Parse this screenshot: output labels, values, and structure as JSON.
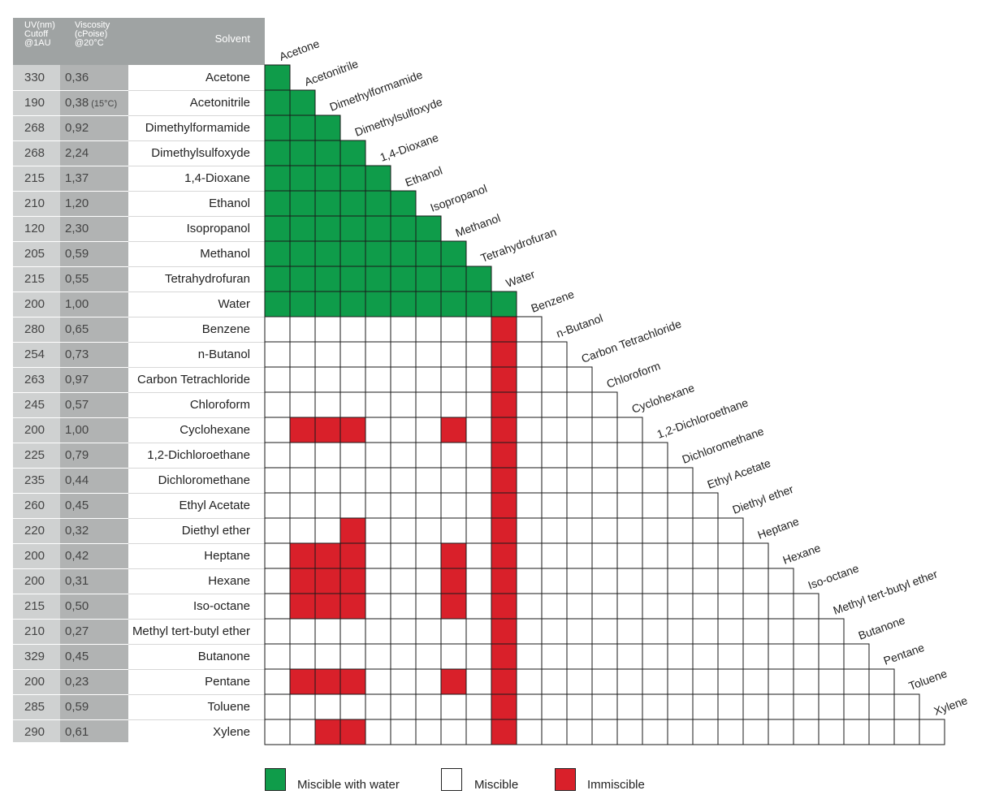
{
  "header": {
    "uv": "UV(nm)\nCutoff\n@1AU",
    "viscosity": "Viscosity\n(cPoise)\n@20°C",
    "solvent": "Solvent"
  },
  "colors": {
    "green": "#0f9c4a",
    "red": "#d9202a",
    "white": "#ffffff",
    "grid": "#1a1a1a"
  },
  "solvents": [
    {
      "name": "Acetone",
      "uv": "330",
      "viscosity": "0,36",
      "note": ""
    },
    {
      "name": "Acetonitrile",
      "uv": "190",
      "viscosity": "0,38",
      "note": "(15°C)"
    },
    {
      "name": "Dimethylformamide",
      "uv": "268",
      "viscosity": "0,92",
      "note": ""
    },
    {
      "name": "Dimethylsulfoxyde",
      "uv": "268",
      "viscosity": "2,24",
      "note": ""
    },
    {
      "name": "1,4-Dioxane",
      "uv": "215",
      "viscosity": "1,37",
      "note": ""
    },
    {
      "name": "Ethanol",
      "uv": "210",
      "viscosity": "1,20",
      "note": ""
    },
    {
      "name": "Isopropanol",
      "uv": "120",
      "viscosity": "2,30",
      "note": ""
    },
    {
      "name": "Methanol",
      "uv": "205",
      "viscosity": "0,59",
      "note": ""
    },
    {
      "name": "Tetrahydrofuran",
      "uv": "215",
      "viscosity": "0,55",
      "note": ""
    },
    {
      "name": "Water",
      "uv": "200",
      "viscosity": "1,00",
      "note": ""
    },
    {
      "name": "Benzene",
      "uv": "280",
      "viscosity": "0,65",
      "note": ""
    },
    {
      "name": "n-Butanol",
      "uv": "254",
      "viscosity": "0,73",
      "note": ""
    },
    {
      "name": "Carbon Tetrachloride",
      "uv": "263",
      "viscosity": "0,97",
      "note": ""
    },
    {
      "name": "Chloroform",
      "uv": "245",
      "viscosity": "0,57",
      "note": ""
    },
    {
      "name": "Cyclohexane",
      "uv": "200",
      "viscosity": "1,00",
      "note": ""
    },
    {
      "name": "1,2-Dichloroethane",
      "uv": "225",
      "viscosity": "0,79",
      "note": ""
    },
    {
      "name": "Dichloromethane",
      "uv": "235",
      "viscosity": "0,44",
      "note": ""
    },
    {
      "name": "Ethyl Acetate",
      "uv": "260",
      "viscosity": "0,45",
      "note": ""
    },
    {
      "name": "Diethyl ether",
      "uv": "220",
      "viscosity": "0,32",
      "note": ""
    },
    {
      "name": "Heptane",
      "uv": "200",
      "viscosity": "0,42",
      "note": ""
    },
    {
      "name": "Hexane",
      "uv": "200",
      "viscosity": "0,31",
      "note": ""
    },
    {
      "name": "Iso-octane",
      "uv": "215",
      "viscosity": "0,50",
      "note": ""
    },
    {
      "name": "Methyl tert-butyl ether",
      "uv": "210",
      "viscosity": "0,27",
      "note": ""
    },
    {
      "name": "Butanone",
      "uv": "329",
      "viscosity": "0,45",
      "note": ""
    },
    {
      "name": "Pentane",
      "uv": "200",
      "viscosity": "0,23",
      "note": ""
    },
    {
      "name": "Toluene",
      "uv": "285",
      "viscosity": "0,59",
      "note": ""
    },
    {
      "name": "Xylene",
      "uv": "290",
      "viscosity": "0,61",
      "note": ""
    }
  ],
  "matrix": {
    "water_miscible_count": 10,
    "immiscible_pairs": [
      [
        "Benzene",
        "Water"
      ],
      [
        "n-Butanol",
        "Water"
      ],
      [
        "Carbon Tetrachloride",
        "Water"
      ],
      [
        "Chloroform",
        "Water"
      ],
      [
        "Cyclohexane",
        "Water"
      ],
      [
        "1,2-Dichloroethane",
        "Water"
      ],
      [
        "Dichloromethane",
        "Water"
      ],
      [
        "Ethyl Acetate",
        "Water"
      ],
      [
        "Diethyl ether",
        "Water"
      ],
      [
        "Heptane",
        "Water"
      ],
      [
        "Hexane",
        "Water"
      ],
      [
        "Iso-octane",
        "Water"
      ],
      [
        "Methyl tert-butyl ether",
        "Water"
      ],
      [
        "Butanone",
        "Water"
      ],
      [
        "Pentane",
        "Water"
      ],
      [
        "Toluene",
        "Water"
      ],
      [
        "Xylene",
        "Water"
      ],
      [
        "Cyclohexane",
        "Acetonitrile"
      ],
      [
        "Cyclohexane",
        "Dimethylformamide"
      ],
      [
        "Cyclohexane",
        "Dimethylsulfoxyde"
      ],
      [
        "Cyclohexane",
        "Methanol"
      ],
      [
        "Diethyl ether",
        "Dimethylsulfoxyde"
      ],
      [
        "Heptane",
        "Acetonitrile"
      ],
      [
        "Heptane",
        "Dimethylformamide"
      ],
      [
        "Heptane",
        "Dimethylsulfoxyde"
      ],
      [
        "Heptane",
        "Methanol"
      ],
      [
        "Hexane",
        "Acetonitrile"
      ],
      [
        "Hexane",
        "Dimethylformamide"
      ],
      [
        "Hexane",
        "Dimethylsulfoxyde"
      ],
      [
        "Hexane",
        "Methanol"
      ],
      [
        "Iso-octane",
        "Acetonitrile"
      ],
      [
        "Iso-octane",
        "Dimethylformamide"
      ],
      [
        "Iso-octane",
        "Dimethylsulfoxyde"
      ],
      [
        "Iso-octane",
        "Methanol"
      ],
      [
        "Pentane",
        "Acetonitrile"
      ],
      [
        "Pentane",
        "Dimethylformamide"
      ],
      [
        "Pentane",
        "Dimethylsulfoxyde"
      ],
      [
        "Pentane",
        "Methanol"
      ],
      [
        "Xylene",
        "Dimethylformamide"
      ],
      [
        "Xylene",
        "Dimethylsulfoxyde"
      ]
    ]
  },
  "legend": [
    {
      "label": "Miscible with water",
      "color": "#0f9c4a"
    },
    {
      "label": "Miscible",
      "color": "#ffffff"
    },
    {
      "label": "Immiscible",
      "color": "#d9202a"
    }
  ]
}
